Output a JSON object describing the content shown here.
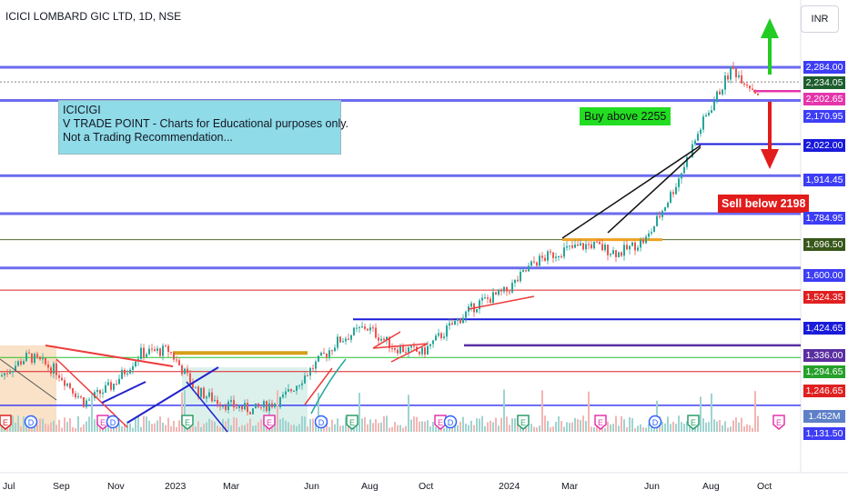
{
  "header": {
    "title": "ICICI LOMBARD GIC LTD, 1D, NSE",
    "currency": "INR"
  },
  "note": {
    "lines": [
      "ICICIGI",
      "V TRADE POINT - Charts for Educational purposes only.",
      "Not a Trading Recommendation..."
    ]
  },
  "labels": {
    "buy": "Buy above 2255",
    "sell": "Sell below 2198"
  },
  "price_scale": {
    "tags": [
      {
        "value": "2,284.00",
        "bg": "#3d3df5"
      },
      {
        "value": "2,234.05",
        "bg": "#1e5e2e"
      },
      {
        "value": "2,202.65",
        "bg": "#e535ab"
      },
      {
        "value": "2,170.95",
        "bg": "#3d3df5"
      },
      {
        "value": "2,022.00",
        "bg": "#1a1adb"
      },
      {
        "value": "1,914.45",
        "bg": "#3d3df5"
      },
      {
        "value": "1,784.95",
        "bg": "#3d3df5"
      },
      {
        "value": "1,696.50",
        "bg": "#38571a"
      },
      {
        "value": "1,600.00",
        "bg": "#3d3df5"
      },
      {
        "value": "1,524.35",
        "bg": "#e02020"
      },
      {
        "value": "1,424.65",
        "bg": "#1a1adb"
      },
      {
        "value": "1,336.00",
        "bg": "#5a2ea0"
      },
      {
        "value": "1,294.65",
        "bg": "#26a02a"
      },
      {
        "value": "1,246.65",
        "bg": "#e02020"
      },
      {
        "value": "1.452M",
        "bg": "#5d80c8"
      },
      {
        "value": "1,131.50",
        "bg": "#3d3df5"
      }
    ]
  },
  "time_axis": {
    "months": [
      "Jul",
      "Sep",
      "Nov",
      "2023",
      "Mar",
      "Jun",
      "Aug",
      "Oct",
      "2024",
      "Mar",
      "Jun",
      "Aug",
      "Oct"
    ]
  },
  "event_markers": [
    "E",
    "D",
    "E",
    "D",
    "E",
    "E",
    "D",
    "E",
    "E",
    "D",
    "E",
    "E",
    "D",
    "E",
    "E"
  ],
  "colors": {
    "up": "#26a69a",
    "down": "#ef5350",
    "level_blue": "#3d3df5",
    "trend_red": "#ef3b3b"
  },
  "chart_data": {
    "type": "candlestick",
    "title": "ICICI LOMBARD GIC LTD, 1D, NSE",
    "ylim": [
      1100,
      2360
    ],
    "x_range": [
      "2022-07",
      "2024-10"
    ],
    "levels": [
      2284.0,
      2234.05,
      2202.65,
      2170.95,
      2022.0,
      1914.45,
      1784.95,
      1696.5,
      1600.0,
      1524.35,
      1424.65,
      1336.0,
      1294.65,
      1246.65,
      1131.5
    ],
    "price_path": [
      [
        "2022-07",
        1230
      ],
      [
        "2022-08",
        1300
      ],
      [
        "2022-09",
        1250
      ],
      [
        "2022-10",
        1140
      ],
      [
        "2022-11",
        1200
      ],
      [
        "2022-12",
        1310
      ],
      [
        "2023-01",
        1320
      ],
      [
        "2023-02",
        1180
      ],
      [
        "2023-03",
        1135
      ],
      [
        "2023-04",
        1115
      ],
      [
        "2023-05",
        1150
      ],
      [
        "2023-06",
        1250
      ],
      [
        "2023-07",
        1350
      ],
      [
        "2023-08",
        1400
      ],
      [
        "2023-09",
        1330
      ],
      [
        "2023-10",
        1310
      ],
      [
        "2023-11",
        1400
      ],
      [
        "2023-12",
        1480
      ],
      [
        "2024-01",
        1520
      ],
      [
        "2024-02",
        1620
      ],
      [
        "2024-03",
        1660
      ],
      [
        "2024-04",
        1680
      ],
      [
        "2024-05",
        1650
      ],
      [
        "2024-06",
        1700
      ],
      [
        "2024-07",
        1880
      ],
      [
        "2024-08",
        2100
      ],
      [
        "2024-09",
        2280
      ],
      [
        "2024-10",
        2190
      ]
    ],
    "buy_above": 2255,
    "sell_below": 2198,
    "volume_last": "1.452M"
  }
}
